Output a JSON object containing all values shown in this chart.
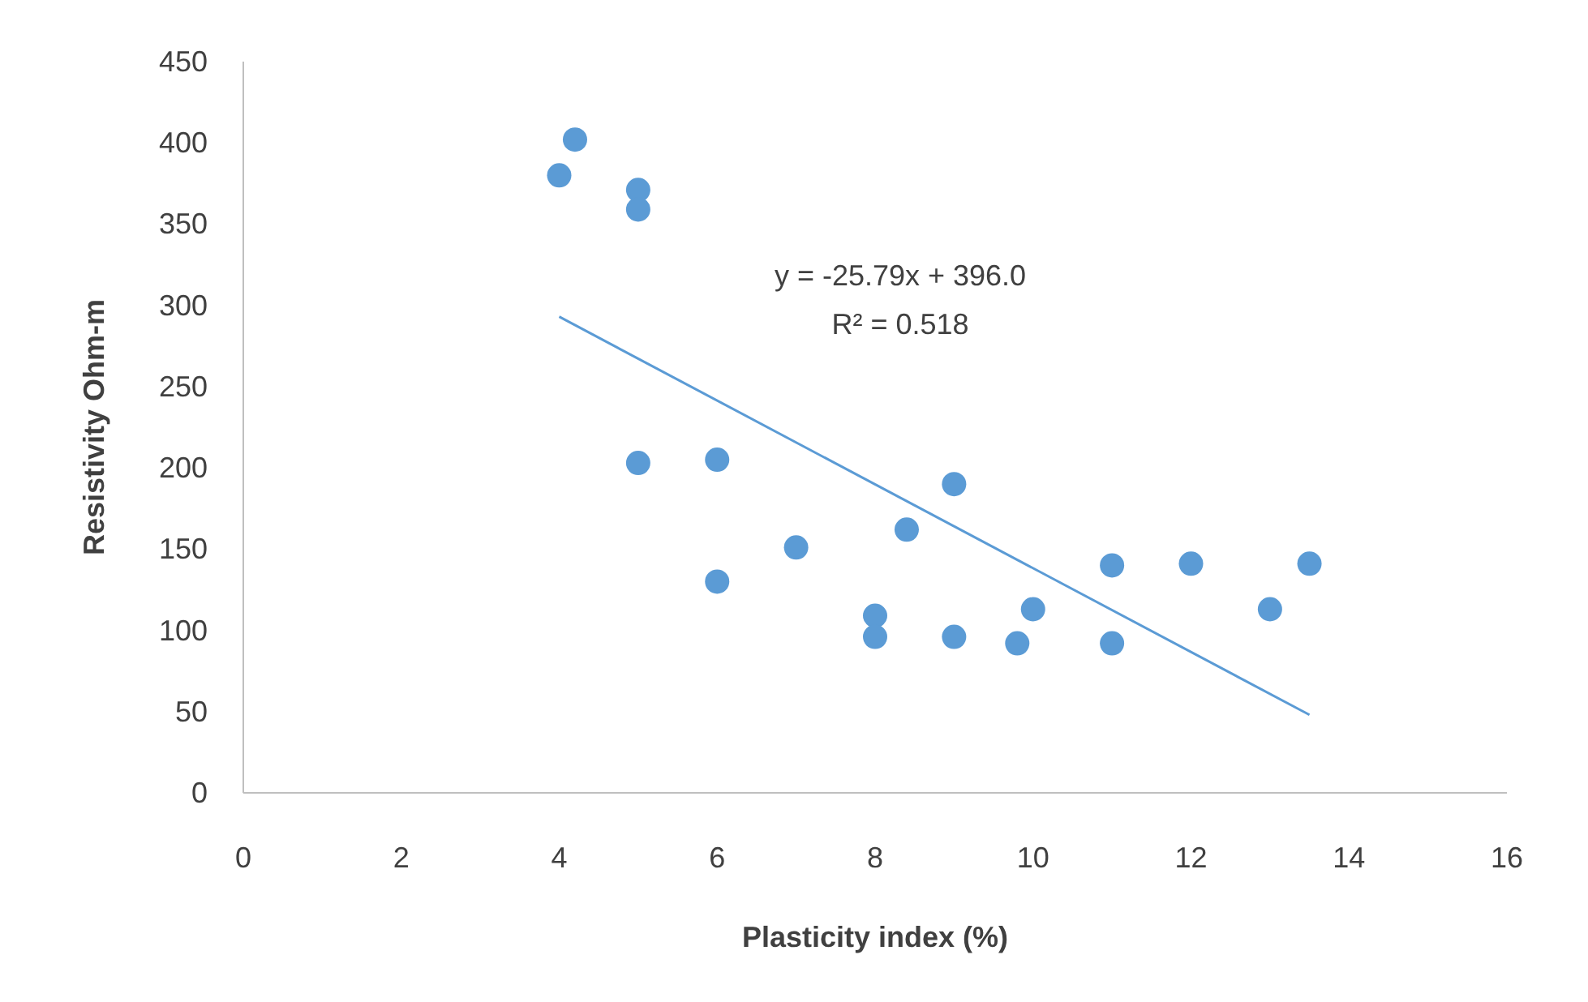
{
  "chart_data": {
    "type": "scatter",
    "xlabel": "Plasticity index (%)",
    "ylabel": "Resistivity Ohm-m",
    "xlim": [
      0,
      16
    ],
    "xticks": [
      0,
      2,
      4,
      6,
      8,
      10,
      12,
      14,
      16
    ],
    "ylim": [
      0,
      450
    ],
    "yticks": [
      0,
      50,
      100,
      150,
      200,
      250,
      300,
      350,
      400,
      450
    ],
    "grid": false,
    "marker": "circle",
    "annotations": [
      "y = -25.79x + 396.0",
      "R² = 0.518"
    ],
    "series": [
      {
        "color": "#5b9bd5",
        "x": [
          4,
          4.2,
          5,
          5,
          5,
          6,
          6,
          7,
          8,
          8,
          8.4,
          9,
          9,
          9.8,
          10,
          11,
          11,
          12,
          13,
          13.5
        ],
        "values": [
          380,
          402,
          371,
          359,
          203,
          205,
          130,
          151,
          109,
          96,
          162,
          190,
          96,
          92,
          113,
          140,
          92,
          141,
          113,
          141
        ]
      },
      {
        "type": "line",
        "color": "#5b9bd5",
        "x": [
          4,
          13.5
        ],
        "values": [
          293,
          48
        ],
        "marker": "none",
        "line_style": "solid"
      }
    ]
  }
}
